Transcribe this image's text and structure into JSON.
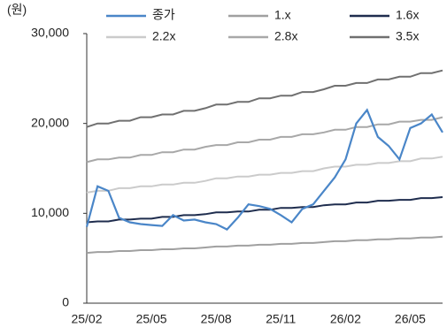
{
  "chart_data": {
    "type": "line",
    "unit_label": "(원)",
    "categories": [
      "25/02",
      null,
      null,
      null,
      null,
      null,
      "25/05",
      null,
      null,
      null,
      null,
      null,
      "25/08",
      null,
      null,
      null,
      null,
      null,
      "25/11",
      null,
      null,
      null,
      null,
      null,
      "26/02",
      null,
      null,
      null,
      null,
      null,
      "26/05",
      null,
      null,
      null
    ],
    "ylim": [
      0,
      30000
    ],
    "yticks": [
      0,
      {
        "value": 10000,
        "label": "10,000"
      },
      {
        "value": 20000,
        "label": "20,000"
      },
      {
        "value": 30000,
        "label": "30,000"
      }
    ],
    "grid": false,
    "legend": "top",
    "series": [
      {
        "name": "종가",
        "color": "#4a86c8",
        "values": [
          8500,
          13000,
          12500,
          9500,
          9000,
          8800,
          8700,
          8600,
          9800,
          9200,
          9300,
          9000,
          8800,
          8200,
          9500,
          11000,
          10800,
          10500,
          9800,
          9000,
          10500,
          11000,
          12500,
          14000,
          16000,
          20000,
          21500,
          18500,
          17500,
          16000,
          19500,
          20000,
          21000,
          19000
        ]
      },
      {
        "name": "1.x",
        "color": "#a0a0a0",
        "values": [
          5600,
          5700,
          5700,
          5800,
          5800,
          5900,
          5900,
          6000,
          6000,
          6100,
          6100,
          6200,
          6300,
          6300,
          6400,
          6400,
          6500,
          6500,
          6600,
          6600,
          6700,
          6700,
          6800,
          6900,
          6900,
          7000,
          7000,
          7100,
          7100,
          7200,
          7200,
          7300,
          7300,
          7400
        ]
      },
      {
        "name": "1.6x",
        "color": "#1f2d4e",
        "values": [
          9000,
          9100,
          9100,
          9300,
          9300,
          9400,
          9400,
          9600,
          9600,
          9800,
          9800,
          9900,
          10100,
          10100,
          10200,
          10200,
          10400,
          10400,
          10600,
          10600,
          10700,
          10700,
          10900,
          11000,
          11000,
          11200,
          11200,
          11400,
          11400,
          11500,
          11500,
          11700,
          11700,
          11800
        ]
      },
      {
        "name": "2.2x",
        "color": "#cbcbcb",
        "values": [
          12300,
          12500,
          12500,
          12800,
          12800,
          13000,
          13000,
          13200,
          13200,
          13400,
          13400,
          13600,
          13900,
          13900,
          14100,
          14100,
          14300,
          14300,
          14500,
          14500,
          14700,
          14700,
          15000,
          15200,
          15200,
          15400,
          15400,
          15600,
          15600,
          15800,
          15800,
          16100,
          16100,
          16300
        ]
      },
      {
        "name": "2.8x",
        "color": "#a8a8a8",
        "values": [
          15700,
          16000,
          16000,
          16200,
          16200,
          16500,
          16500,
          16800,
          16800,
          17100,
          17100,
          17400,
          17600,
          17600,
          17900,
          17900,
          18200,
          18200,
          18500,
          18500,
          18800,
          18800,
          19000,
          19300,
          19300,
          19600,
          19600,
          19900,
          19900,
          20200,
          20200,
          20400,
          20400,
          20700
        ]
      },
      {
        "name": "3.5x",
        "color": "#707070",
        "values": [
          19600,
          20000,
          20000,
          20300,
          20300,
          20700,
          20700,
          21000,
          21000,
          21400,
          21400,
          21700,
          22100,
          22100,
          22400,
          22400,
          22800,
          22800,
          23100,
          23100,
          23500,
          23500,
          23800,
          24200,
          24200,
          24500,
          24500,
          24900,
          24900,
          25200,
          25200,
          25600,
          25600,
          25900
        ]
      }
    ]
  }
}
